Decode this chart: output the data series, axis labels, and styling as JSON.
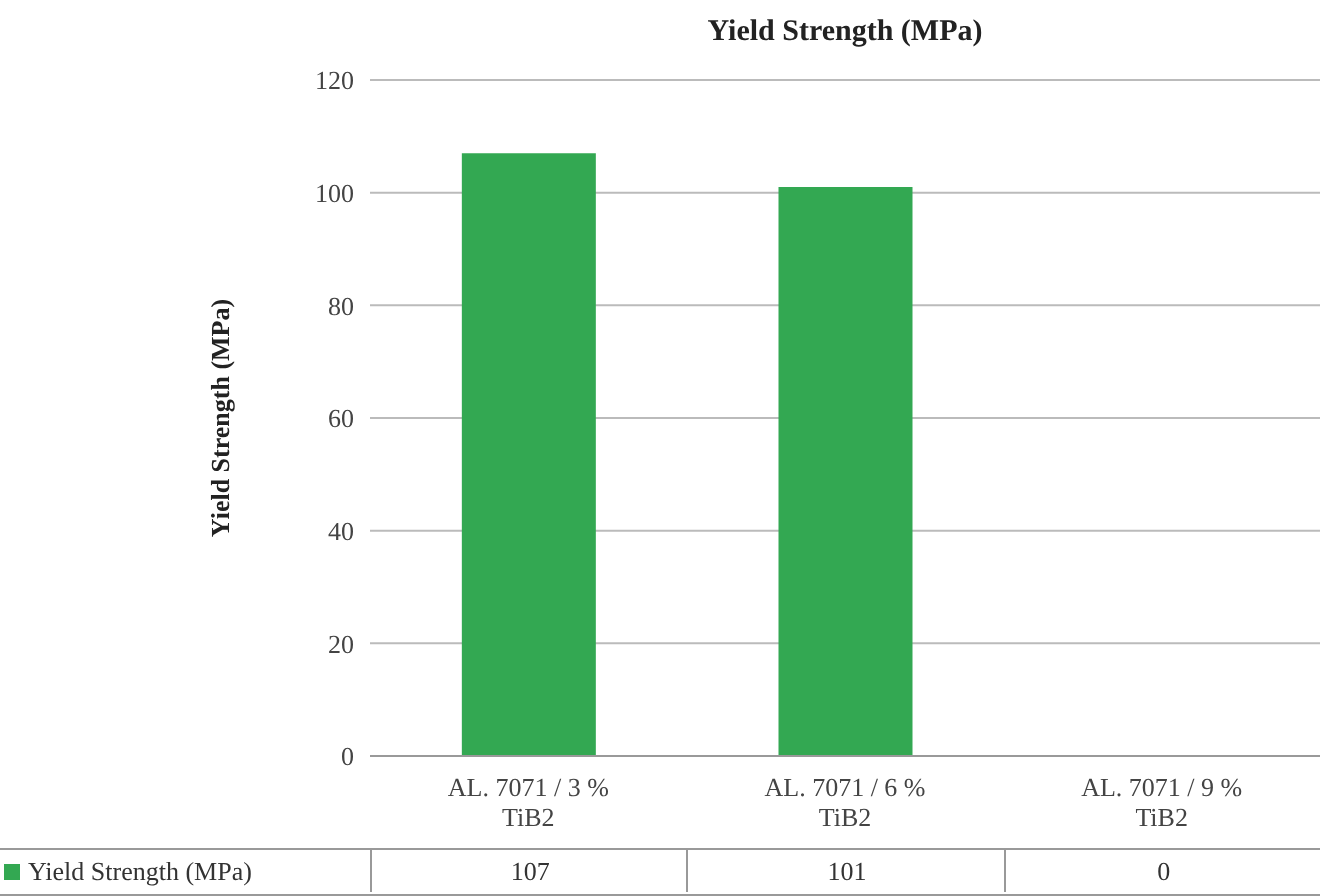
{
  "chart_data": {
    "type": "bar",
    "title": "Yield Strength (MPa)",
    "ylabel": "Yield Strength (MPa)",
    "categories": [
      "AL. 7071 / 3 % TiB2",
      "AL. 7071 / 6 % TiB2",
      "AL. 7071 / 9 % TiB2"
    ],
    "series": [
      {
        "name": "Yield Strength (MPa)",
        "color": "#33a852",
        "values": [
          107,
          101,
          0
        ]
      }
    ],
    "ylim": [
      0,
      120
    ],
    "yticks": [
      0,
      20,
      40,
      60,
      80,
      100,
      120
    ],
    "grid": "y",
    "legend": "bottom",
    "data_labels": true
  }
}
